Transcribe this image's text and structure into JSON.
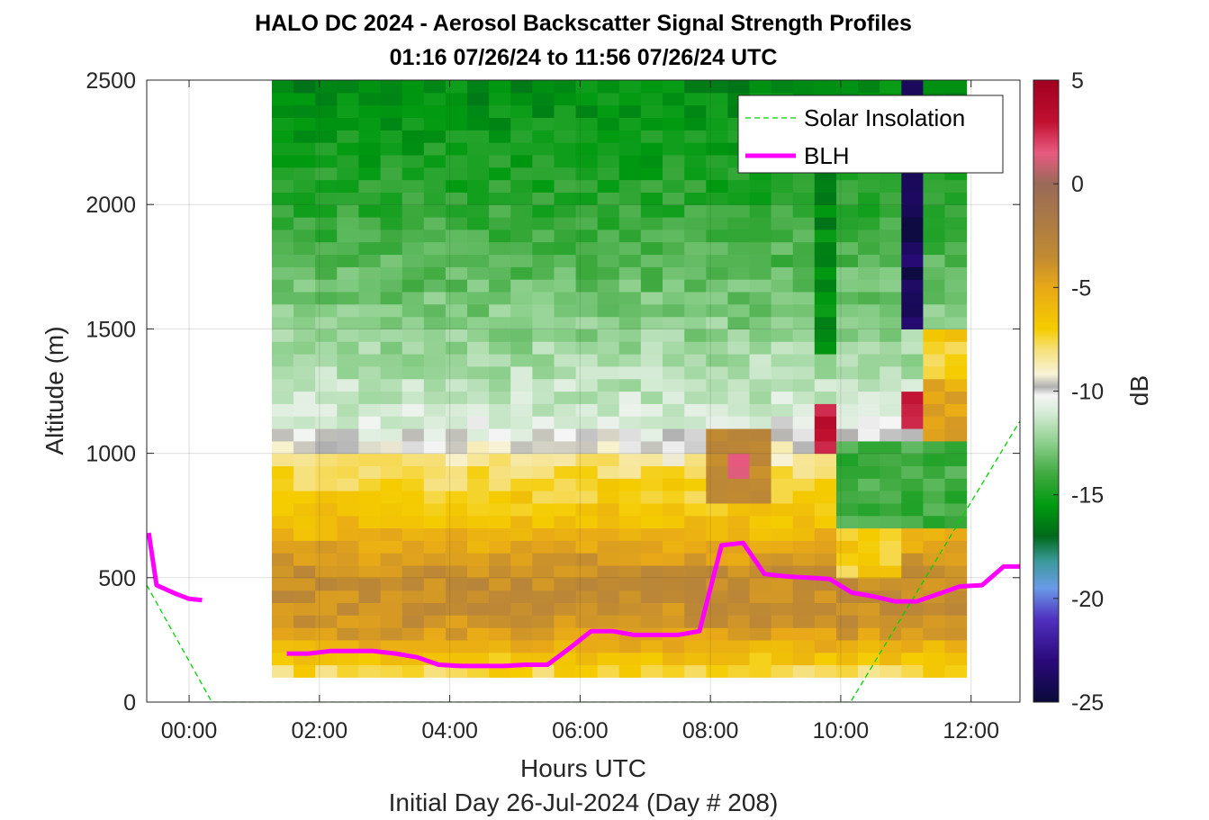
{
  "chart_data": {
    "type": "heatmap",
    "title": "HALO DC 2024 - Aerosol Backscatter Signal Strength Profiles",
    "subtitle": "01:16 07/26/24 to 11:56 07/26/24  UTC",
    "xlabel": "Hours UTC",
    "xlabel2": "Initial Day 26-Jul-2024 (Day # 208)",
    "ylabel": "Altitude (m)",
    "colorbar_label": "dB",
    "xlim": [
      -0.65,
      12.75
    ],
    "ylim": [
      0,
      2500
    ],
    "x_ticks": [
      0,
      2,
      4,
      6,
      8,
      10,
      12
    ],
    "x_tick_labels": [
      "00:00",
      "02:00",
      "04:00",
      "06:00",
      "08:00",
      "10:00",
      "12:00"
    ],
    "y_ticks": [
      0,
      500,
      1000,
      1500,
      2000,
      2500
    ],
    "y_tick_labels": [
      "0",
      "500",
      "1000",
      "1500",
      "2000",
      "2500"
    ],
    "colorbar_ticks": [
      5,
      0,
      -5,
      -10,
      -15,
      -20,
      -25
    ],
    "colorbar_tick_labels": [
      "5",
      "0",
      "-5",
      "-10",
      "-15",
      "-20",
      "-25"
    ],
    "clim": [
      -25,
      5
    ],
    "grid": true,
    "legend_position": "top-right",
    "heatmap": {
      "x_start": 1.27,
      "x_end": 11.93,
      "y_start": 100,
      "y_end": 2500,
      "n_cols": 32,
      "n_rows": 48,
      "profile": [
        [
          100,
          -8
        ],
        [
          150,
          -7
        ],
        [
          300,
          -4
        ],
        [
          500,
          -3.5
        ],
        [
          700,
          -6
        ],
        [
          950,
          -8
        ],
        [
          1050,
          -10
        ],
        [
          1150,
          -11
        ],
        [
          1500,
          -12.5
        ],
        [
          2000,
          -14.5
        ],
        [
          2500,
          -16
        ]
      ],
      "anomalies": [
        {
          "x": [
            7.9,
            8.9
          ],
          "y": [
            780,
            1100
          ],
          "value": -3.5
        },
        {
          "x": [
            8.2,
            8.6
          ],
          "y": [
            900,
            1000
          ],
          "value": 1
        },
        {
          "x": [
            9.6,
            9.9
          ],
          "y": [
            1000,
            1200
          ],
          "value": 3
        },
        {
          "x": [
            9.9,
            10.9
          ],
          "y": [
            500,
            700
          ],
          "value": -7
        },
        {
          "x": [
            9.9,
            11.9
          ],
          "y": [
            700,
            1050
          ],
          "value": -14
        },
        {
          "x": [
            9.5,
            9.9
          ],
          "y": [
            1400,
            2500
          ],
          "value": -16
        },
        {
          "x": [
            10.8,
            11.1
          ],
          "y": [
            1100,
            1250
          ],
          "value": 3
        },
        {
          "x": [
            11.1,
            11.9
          ],
          "y": [
            1050,
            1300
          ],
          "value": -5
        },
        {
          "x": [
            10.8,
            11.1
          ],
          "y": [
            1500,
            2500
          ],
          "value": -24
        },
        {
          "x": [
            11.1,
            11.9
          ],
          "y": [
            1300,
            1500
          ],
          "value": -7
        }
      ]
    },
    "series": [
      {
        "name": "Solar Insolation",
        "color": "#00d400",
        "style": "dashed",
        "x": [
          -0.65,
          0.35,
          10.15,
          12.75
        ],
        "y": [
          470,
          0,
          0,
          1130
        ]
      },
      {
        "name": "BLH",
        "color": "#ff00ff",
        "style": "solid",
        "segments": [
          {
            "x": [
              -0.62,
              -0.5,
              -0.2,
              0.0,
              0.2
            ],
            "y": [
              680,
              470,
              435,
              415,
              410
            ]
          },
          {
            "x": [
              1.5,
              1.83,
              2.17,
              2.5,
              2.83,
              3.17,
              3.5,
              3.83,
              4.17,
              4.5,
              4.83,
              5.17,
              5.5,
              5.83,
              6.17,
              6.5,
              6.83,
              7.17,
              7.5,
              7.83,
              8.17,
              8.5,
              8.83,
              9.17,
              9.5,
              9.83,
              10.17,
              10.5,
              10.83,
              11.17,
              11.5,
              11.83,
              12.17,
              12.5,
              12.75
            ],
            "y": [
              195,
              195,
              205,
              205,
              205,
              195,
              180,
              150,
              145,
              145,
              145,
              150,
              150,
              215,
              285,
              285,
              270,
              270,
              270,
              285,
              630,
              640,
              515,
              505,
              500,
              495,
              440,
              425,
              405,
              405,
              435,
              465,
              470,
              545,
              545
            ]
          }
        ]
      }
    ]
  }
}
